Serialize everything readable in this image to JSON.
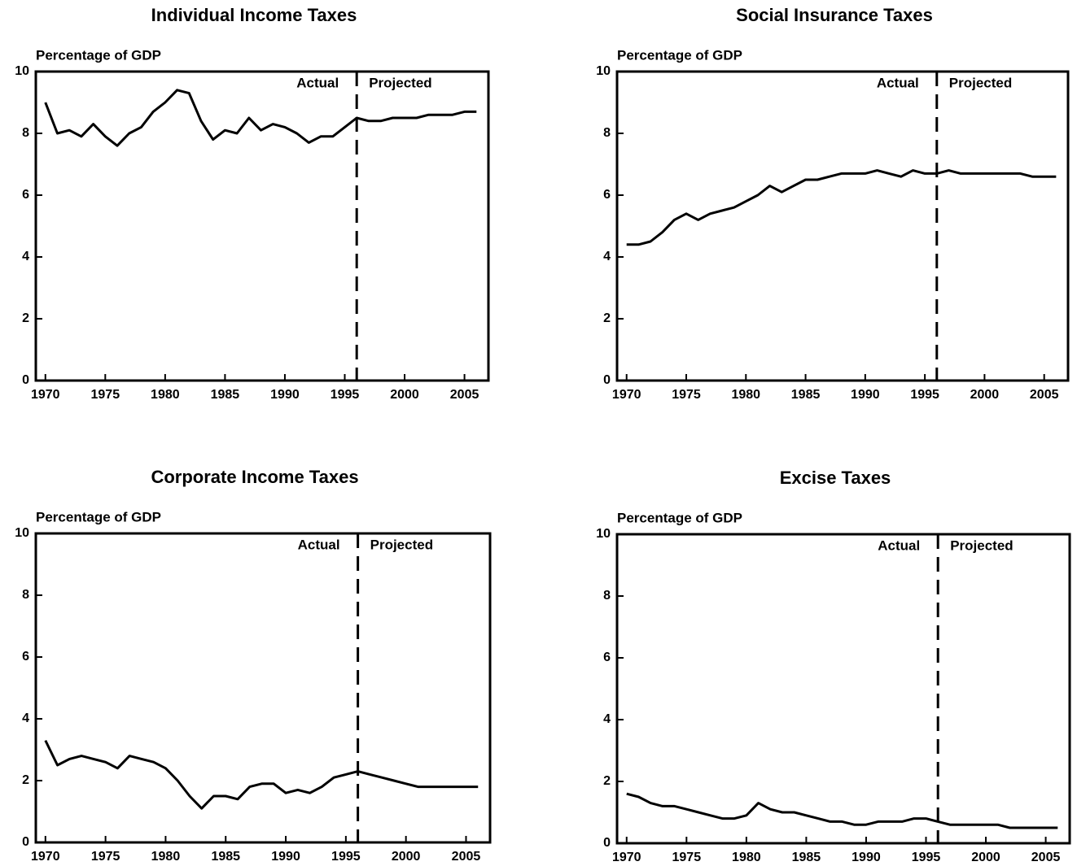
{
  "chart_data": [
    {
      "type": "line",
      "title": "Individual Income Taxes",
      "y_label": "Percentage of GDP",
      "annotations": [
        "Actual",
        "Projected"
      ],
      "divider_x": 1996,
      "x": [
        1970,
        1971,
        1972,
        1973,
        1974,
        1975,
        1976,
        1977,
        1978,
        1979,
        1980,
        1981,
        1982,
        1983,
        1984,
        1985,
        1986,
        1987,
        1988,
        1989,
        1990,
        1991,
        1992,
        1993,
        1994,
        1995,
        1996,
        1997,
        1998,
        1999,
        2000,
        2001,
        2002,
        2003,
        2004,
        2005,
        2006
      ],
      "series": [
        {
          "name": "Individual Income Taxes",
          "color": "#000000",
          "values": [
            9.0,
            8.0,
            8.1,
            7.9,
            8.3,
            7.9,
            7.6,
            8.0,
            8.2,
            8.7,
            9.0,
            9.4,
            9.3,
            8.4,
            7.8,
            8.1,
            8.0,
            8.5,
            8.1,
            8.3,
            8.2,
            8.0,
            7.7,
            7.9,
            7.9,
            8.2,
            8.5,
            8.4,
            8.4,
            8.5,
            8.5,
            8.5,
            8.6,
            8.6,
            8.6,
            8.7,
            8.7
          ]
        }
      ],
      "xlim": [
        1969.2,
        2007
      ],
      "xticks": [
        1970,
        1975,
        1980,
        1985,
        1990,
        1995,
        2000,
        2005
      ],
      "ylim": [
        0,
        10
      ],
      "yticks": [
        0,
        2,
        4,
        6,
        8,
        10
      ]
    },
    {
      "type": "line",
      "title": "Social Insurance Taxes",
      "y_label": "Percentage of GDP",
      "annotations": [
        "Actual",
        "Projected"
      ],
      "divider_x": 1996,
      "x": [
        1970,
        1971,
        1972,
        1973,
        1974,
        1975,
        1976,
        1977,
        1978,
        1979,
        1980,
        1981,
        1982,
        1983,
        1984,
        1985,
        1986,
        1987,
        1988,
        1989,
        1990,
        1991,
        1992,
        1993,
        1994,
        1995,
        1996,
        1997,
        1998,
        1999,
        2000,
        2001,
        2002,
        2003,
        2004,
        2005,
        2006
      ],
      "series": [
        {
          "name": "Social Insurance Taxes",
          "color": "#000000",
          "values": [
            4.4,
            4.4,
            4.5,
            4.8,
            5.2,
            5.4,
            5.2,
            5.4,
            5.5,
            5.6,
            5.8,
            6.0,
            6.3,
            6.1,
            6.3,
            6.5,
            6.5,
            6.6,
            6.7,
            6.7,
            6.7,
            6.8,
            6.7,
            6.6,
            6.8,
            6.7,
            6.7,
            6.8,
            6.7,
            6.7,
            6.7,
            6.7,
            6.7,
            6.7,
            6.6,
            6.6,
            6.6
          ]
        }
      ],
      "xlim": [
        1969.2,
        2007
      ],
      "xticks": [
        1970,
        1975,
        1980,
        1985,
        1990,
        1995,
        2000,
        2005
      ],
      "ylim": [
        0,
        10
      ],
      "yticks": [
        0,
        2,
        4,
        6,
        8,
        10
      ]
    },
    {
      "type": "line",
      "title": "Corporate Income Taxes",
      "y_label": "Percentage of GDP",
      "annotations": [
        "Actual",
        "Projected"
      ],
      "divider_x": 1996,
      "x": [
        1970,
        1971,
        1972,
        1973,
        1974,
        1975,
        1976,
        1977,
        1978,
        1979,
        1980,
        1981,
        1982,
        1983,
        1984,
        1985,
        1986,
        1987,
        1988,
        1989,
        1990,
        1991,
        1992,
        1993,
        1994,
        1995,
        1996,
        1997,
        1998,
        1999,
        2000,
        2001,
        2002,
        2003,
        2004,
        2005,
        2006
      ],
      "series": [
        {
          "name": "Corporate Income Taxes",
          "color": "#000000",
          "values": [
            3.3,
            2.5,
            2.7,
            2.8,
            2.7,
            2.6,
            2.4,
            2.8,
            2.7,
            2.6,
            2.4,
            2.0,
            1.5,
            1.1,
            1.5,
            1.5,
            1.4,
            1.8,
            1.9,
            1.9,
            1.6,
            1.7,
            1.6,
            1.8,
            2.1,
            2.2,
            2.3,
            2.2,
            2.1,
            2.0,
            1.9,
            1.8,
            1.8,
            1.8,
            1.8,
            1.8,
            1.8
          ]
        }
      ],
      "xlim": [
        1969.2,
        2007
      ],
      "xticks": [
        1970,
        1975,
        1980,
        1985,
        1990,
        1995,
        2000,
        2005
      ],
      "ylim": [
        0,
        10
      ],
      "yticks": [
        0,
        2,
        4,
        6,
        8,
        10
      ]
    },
    {
      "type": "line",
      "title": "Excise Taxes",
      "y_label": "Percentage of GDP",
      "annotations": [
        "Actual",
        "Projected"
      ],
      "divider_x": 1996,
      "x": [
        1970,
        1971,
        1972,
        1973,
        1974,
        1975,
        1976,
        1977,
        1978,
        1979,
        1980,
        1981,
        1982,
        1983,
        1984,
        1985,
        1986,
        1987,
        1988,
        1989,
        1990,
        1991,
        1992,
        1993,
        1994,
        1995,
        1996,
        1997,
        1998,
        1999,
        2000,
        2001,
        2002,
        2003,
        2004,
        2005,
        2006
      ],
      "series": [
        {
          "name": "Excise Taxes",
          "color": "#000000",
          "values": [
            1.6,
            1.5,
            1.3,
            1.2,
            1.2,
            1.1,
            1.0,
            0.9,
            0.8,
            0.8,
            0.9,
            1.3,
            1.1,
            1.0,
            1.0,
            0.9,
            0.8,
            0.7,
            0.7,
            0.6,
            0.6,
            0.7,
            0.7,
            0.7,
            0.8,
            0.8,
            0.7,
            0.6,
            0.6,
            0.6,
            0.6,
            0.6,
            0.5,
            0.5,
            0.5,
            0.5,
            0.5
          ]
        }
      ],
      "xlim": [
        1969.2,
        2007
      ],
      "xticks": [
        1970,
        1975,
        1980,
        1985,
        1990,
        1995,
        2000,
        2005
      ],
      "ylim": [
        0,
        10
      ],
      "yticks": [
        0,
        2,
        4,
        6,
        8,
        10
      ]
    }
  ]
}
